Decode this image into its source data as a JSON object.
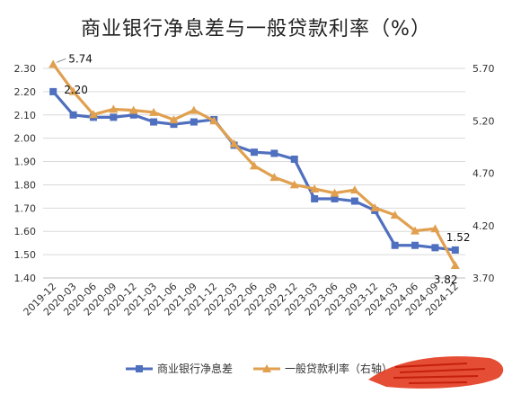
{
  "chart_data": {
    "type": "line",
    "title": "商业银行净息差与一般贷款利率（%）",
    "categories": [
      "2019-12",
      "2020-03",
      "2020-06",
      "2020-09",
      "2020-12",
      "2021-03",
      "2021-06",
      "2021-09",
      "2021-12",
      "2022-03",
      "2022-06",
      "2022-09",
      "2022-12",
      "2023-03",
      "2023-06",
      "2023-09",
      "2023-12",
      "2024-03",
      "2024-06",
      "2024-09",
      "2024-12"
    ],
    "series": [
      {
        "name": "商业银行净息差",
        "axis": "left",
        "color": "#4f6fbf",
        "marker": "square",
        "values": [
          2.2,
          2.1,
          2.09,
          2.09,
          2.1,
          2.07,
          2.06,
          2.07,
          2.08,
          1.97,
          1.94,
          1.935,
          1.91,
          1.74,
          1.74,
          1.73,
          1.69,
          1.54,
          1.54,
          1.53,
          1.52
        ]
      },
      {
        "name": "一般贷款利率（右轴）",
        "axis": "right",
        "color": "#e0a050",
        "marker": "triangle",
        "values": [
          5.74,
          5.48,
          5.26,
          5.31,
          5.3,
          5.28,
          5.21,
          5.3,
          5.2,
          4.98,
          4.77,
          4.66,
          4.59,
          4.55,
          4.51,
          4.54,
          4.37,
          4.3,
          4.15,
          4.17,
          3.82
        ]
      }
    ],
    "ylim_left": [
      1.4,
      2.3
    ],
    "yticks_left": [
      "1.40",
      "1.50",
      "1.60",
      "1.70",
      "1.80",
      "1.90",
      "2.00",
      "2.10",
      "2.20",
      "2.30"
    ],
    "ylim_right": [
      3.7,
      5.7
    ],
    "yticks_right": [
      "3.70",
      "4.20",
      "4.70",
      "5.20",
      "5.70"
    ],
    "annotations": [
      {
        "series": 0,
        "index": 0,
        "text": "2.20"
      },
      {
        "series": 1,
        "index": 0,
        "text": "5.74"
      },
      {
        "series": 0,
        "index": 20,
        "text": "1.52"
      },
      {
        "series": 1,
        "index": 20,
        "text": "3.82"
      }
    ],
    "grid": true,
    "legend": "bottom"
  }
}
